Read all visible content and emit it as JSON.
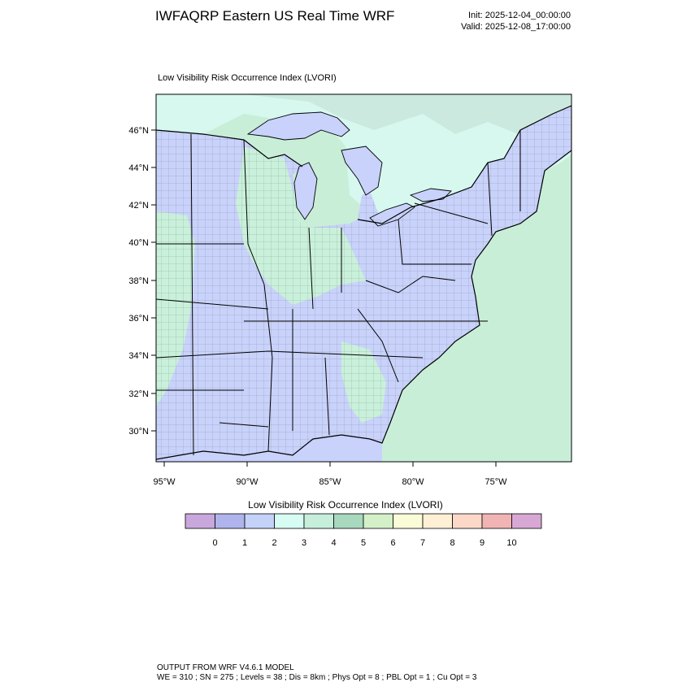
{
  "header": {
    "title": "IWFAQRP Eastern US Real Time WRF",
    "init": "Init: 2025-12-04_00:00:00",
    "valid": "Valid: 2025-12-08_17:00:00"
  },
  "plot_title": "Low Visibility Risk Occurrence Index   (LVORI)",
  "map": {
    "lat_labels": [
      "46°N",
      "44°N",
      "42°N",
      "40°N",
      "38°N",
      "36°N",
      "34°N",
      "32°N",
      "30°N"
    ],
    "lon_labels": [
      "95°W",
      "90°W",
      "85°W",
      "80°W",
      "75°W"
    ],
    "colors": {
      "land_low": "#c8d2fa",
      "land_mid": "#c9f0da",
      "ocean": "#c8eed8",
      "lake_water": "#c8d2fa",
      "canada": "#d6f8ef"
    }
  },
  "colorbar": {
    "title": "Low Visibility Risk Occurrence Index  (LVORI)",
    "labels": [
      "0",
      "1",
      "2",
      "3",
      "4",
      "5",
      "6",
      "7",
      "8",
      "9",
      "10"
    ],
    "colors": [
      "#c8a8dc",
      "#b0b4ec",
      "#c4d2fa",
      "#d6fcf4",
      "#c6eedb",
      "#a8d8be",
      "#d4f0c8",
      "#fafcd8",
      "#fdf0d4",
      "#fcd8c8",
      "#f0b4b4",
      "#d8a8d4"
    ]
  },
  "footer": {
    "line1": "OUTPUT FROM WRF V4.6.1 MODEL",
    "line2": "WE = 310 ; SN = 275 ; Levels = 38 ; Dis = 8km ; Phys Opt = 8 ; PBL Opt = 1 ; Cu Opt = 3"
  }
}
